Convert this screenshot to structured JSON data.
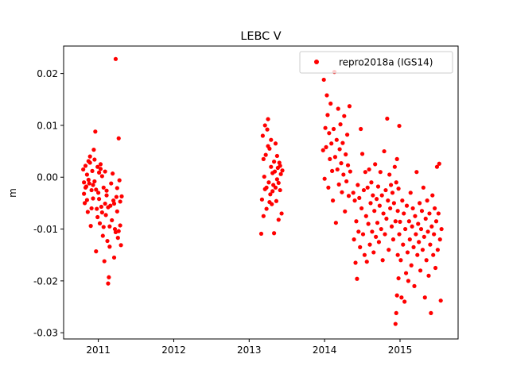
{
  "chart_data": {
    "type": "scatter",
    "title": "LEBC V",
    "xlabel": "",
    "ylabel": "m",
    "xlim": [
      2010.54,
      2015.77
    ],
    "ylim": [
      -0.0312,
      0.0253
    ],
    "x_ticks": [
      {
        "value": 2011,
        "label": "2011"
      },
      {
        "value": 2012,
        "label": "2012"
      },
      {
        "value": 2013,
        "label": "2013"
      },
      {
        "value": 2014,
        "label": "2014"
      },
      {
        "value": 2015,
        "label": "2015"
      }
    ],
    "y_ticks": [
      {
        "value": 0.02,
        "label": "0.02"
      },
      {
        "value": 0.01,
        "label": "0.01"
      },
      {
        "value": 0.0,
        "label": "0.00"
      },
      {
        "value": -0.01,
        "label": "-0.01"
      },
      {
        "value": -0.02,
        "label": "-0.02"
      },
      {
        "value": -0.03,
        "label": "-0.03"
      }
    ],
    "grid": false,
    "legend_position": "top-right",
    "series": [
      {
        "name": "repro2018a (IGS14)",
        "color": "#ff0000",
        "marker": "circle",
        "points": [
          [
            2010.8,
            0.0015
          ],
          [
            2010.81,
            -0.0032
          ],
          [
            2010.82,
            -0.005
          ],
          [
            2010.83,
            0.0022
          ],
          [
            2010.84,
            -0.0018
          ],
          [
            2010.85,
            0.0005
          ],
          [
            2010.86,
            -0.0067
          ],
          [
            2010.87,
            0.0031
          ],
          [
            2010.88,
            -0.0012
          ],
          [
            2010.89,
            0.004
          ],
          [
            2010.9,
            -0.0094
          ],
          [
            2010.91,
            -0.0025
          ],
          [
            2010.92,
            0.0012
          ],
          [
            2010.93,
            -0.0041
          ],
          [
            2010.94,
            0.0053
          ],
          [
            2010.95,
            -0.0008
          ],
          [
            2010.96,
            0.0088
          ],
          [
            2010.97,
            -0.0143
          ],
          [
            2010.98,
            -0.0061
          ],
          [
            2010.99,
            0.002
          ],
          [
            2011.0,
            -0.003
          ],
          [
            2011.01,
            0.0009
          ],
          [
            2011.02,
            -0.0089
          ],
          [
            2011.03,
            0.0016
          ],
          [
            2011.04,
            -0.0057
          ],
          [
            2011.05,
            0.0002
          ],
          [
            2011.06,
            -0.0113
          ],
          [
            2011.07,
            -0.002
          ],
          [
            2011.08,
            -0.0162
          ],
          [
            2011.09,
            0.0011
          ],
          [
            2011.1,
            -0.0073
          ],
          [
            2011.11,
            -0.0035
          ],
          [
            2011.12,
            -0.0123
          ],
          [
            2011.13,
            -0.0205
          ],
          [
            2011.14,
            -0.0193
          ],
          [
            2011.15,
            -0.0134
          ],
          [
            2011.16,
            -0.0055
          ],
          [
            2011.17,
            -0.0012
          ],
          [
            2011.18,
            -0.0083
          ],
          [
            2011.19,
            0.0007
          ],
          [
            2011.2,
            -0.0045
          ],
          [
            2011.21,
            -0.0155
          ],
          [
            2011.22,
            -0.01
          ],
          [
            2011.23,
            0.0228
          ],
          [
            2011.24,
            -0.0038
          ],
          [
            2011.25,
            -0.0066
          ],
          [
            2011.26,
            -0.0117
          ],
          [
            2011.27,
            0.0075
          ],
          [
            2011.28,
            -0.0006
          ],
          [
            2011.29,
            -0.0093
          ],
          [
            2011.3,
            -0.0131
          ],
          [
            2011.31,
            -0.0037
          ],
          [
            2010.81,
            -0.001
          ],
          [
            2010.83,
            -0.002
          ],
          [
            2010.85,
            -0.0044
          ],
          [
            2010.87,
            -0.0005
          ],
          [
            2010.89,
            0.0028
          ],
          [
            2010.91,
            -0.006
          ],
          [
            2010.93,
            -0.0015
          ],
          [
            2010.95,
            0.0034
          ],
          [
            2010.97,
            -0.0024
          ],
          [
            2010.99,
            -0.0077
          ],
          [
            2011.01,
            -0.0042
          ],
          [
            2011.03,
            0.0025
          ],
          [
            2011.05,
            -0.0068
          ],
          [
            2011.07,
            -0.0096
          ],
          [
            2011.09,
            -0.0051
          ],
          [
            2011.11,
            -0.0026
          ],
          [
            2011.13,
            -0.0058
          ],
          [
            2011.15,
            -0.0095
          ],
          [
            2011.21,
            -0.0051
          ],
          [
            2011.23,
            -0.0106
          ],
          [
            2011.25,
            -0.0021
          ],
          [
            2011.27,
            -0.0104
          ],
          [
            2011.29,
            -0.0047
          ],
          [
            2013.16,
            -0.0109
          ],
          [
            2013.17,
            -0.0043
          ],
          [
            2013.18,
            0.008
          ],
          [
            2013.19,
            -0.0075
          ],
          [
            2013.2,
            0.0001
          ],
          [
            2013.21,
            -0.0023
          ],
          [
            2013.22,
            0.0043
          ],
          [
            2013.23,
            -0.0061
          ],
          [
            2013.24,
            0.0092
          ],
          [
            2013.25,
            0.0112
          ],
          [
            2013.26,
            -0.001
          ],
          [
            2013.27,
            0.0055
          ],
          [
            2013.28,
            -0.0033
          ],
          [
            2013.29,
            0.002
          ],
          [
            2013.3,
            -0.0052
          ],
          [
            2013.31,
            0.0008
          ],
          [
            2013.32,
            -0.0015
          ],
          [
            2013.33,
            -0.0108
          ],
          [
            2013.34,
            0.0011
          ],
          [
            2013.35,
            0.0065
          ],
          [
            2013.36,
            -0.0046
          ],
          [
            2013.37,
            -0.0004
          ],
          [
            2013.38,
            0.0018
          ],
          [
            2013.39,
            -0.0082
          ],
          [
            2013.4,
            0.0028
          ],
          [
            2013.41,
            -0.0025
          ],
          [
            2013.42,
            0.0006
          ],
          [
            2013.43,
            -0.007
          ],
          [
            2013.44,
            0.0013
          ],
          [
            2013.19,
            0.0035
          ],
          [
            2013.21,
            0.01
          ],
          [
            2013.23,
            -0.002
          ],
          [
            2013.25,
            0.006
          ],
          [
            2013.27,
            -0.0048
          ],
          [
            2013.29,
            0.0072
          ],
          [
            2013.31,
            -0.0027
          ],
          [
            2013.33,
            0.003
          ],
          [
            2013.35,
            -0.002
          ],
          [
            2013.37,
            0.0041
          ],
          [
            2013.39,
            -0.0011
          ],
          [
            2013.41,
            0.0022
          ],
          [
            2013.98,
            0.0052
          ],
          [
            2013.99,
            0.0188
          ],
          [
            2014.0,
            -0.0003
          ],
          [
            2014.01,
            0.0095
          ],
          [
            2014.02,
            0.0058
          ],
          [
            2014.03,
            0.0158
          ],
          [
            2014.04,
            0.012
          ],
          [
            2014.05,
            -0.002
          ],
          [
            2014.06,
            0.0085
          ],
          [
            2014.07,
            0.0035
          ],
          [
            2014.08,
            0.0142
          ],
          [
            2014.09,
            0.0065
          ],
          [
            2014.1,
            0.0012
          ],
          [
            2014.11,
            -0.0045
          ],
          [
            2014.12,
            0.0093
          ],
          [
            2014.13,
            0.0203
          ],
          [
            2014.14,
            0.0039
          ],
          [
            2014.15,
            -0.0088
          ],
          [
            2014.16,
            0.0072
          ],
          [
            2014.17,
            0.0015
          ],
          [
            2014.18,
            0.0132
          ],
          [
            2014.19,
            -0.0014
          ],
          [
            2014.2,
            0.0054
          ],
          [
            2014.21,
            0.0102
          ],
          [
            2014.22,
            0.0027
          ],
          [
            2014.23,
            -0.0029
          ],
          [
            2014.24,
            0.0066
          ],
          [
            2014.25,
            0.0005
          ],
          [
            2014.26,
            0.0118
          ],
          [
            2014.27,
            -0.0066
          ],
          [
            2014.28,
            0.0044
          ],
          [
            2014.29,
            -0.0008
          ],
          [
            2014.3,
            0.0082
          ],
          [
            2014.31,
            0.0023
          ],
          [
            2014.32,
            -0.0036
          ],
          [
            2014.33,
            0.0137
          ],
          [
            2014.34,
            0.0011
          ],
          [
            2014.38,
            -0.003
          ],
          [
            2014.39,
            -0.012
          ],
          [
            2014.4,
            -0.0045
          ],
          [
            2014.41,
            -0.0165
          ],
          [
            2014.42,
            -0.0085
          ],
          [
            2014.43,
            -0.0196
          ],
          [
            2014.44,
            -0.0015
          ],
          [
            2014.45,
            -0.0105
          ],
          [
            2014.46,
            -0.004
          ],
          [
            2014.47,
            -0.0135
          ],
          [
            2014.48,
            0.0093
          ],
          [
            2014.49,
            -0.006
          ],
          [
            2014.5,
            0.0045
          ],
          [
            2014.51,
            -0.011
          ],
          [
            2014.52,
            -0.0025
          ],
          [
            2014.53,
            -0.015
          ],
          [
            2014.54,
            0.001
          ],
          [
            2014.55,
            -0.0075
          ],
          [
            2014.56,
            -0.0163
          ],
          [
            2014.57,
            -0.002
          ],
          [
            2014.58,
            -0.009
          ],
          [
            2014.59,
            0.0015
          ],
          [
            2014.6,
            -0.013
          ],
          [
            2014.61,
            -0.005
          ],
          [
            2014.62,
            -0.001
          ],
          [
            2014.63,
            -0.0105
          ],
          [
            2014.64,
            -0.0035
          ],
          [
            2014.65,
            -0.0145
          ],
          [
            2014.66,
            -0.0065
          ],
          [
            2014.67,
            0.0025
          ],
          [
            2014.68,
            -0.0115
          ],
          [
            2014.69,
            -0.0042
          ],
          [
            2014.7,
            -0.0088
          ],
          [
            2014.71,
            -0.0018
          ],
          [
            2014.72,
            -0.0125
          ],
          [
            2014.73,
            -0.0055
          ],
          [
            2014.74,
            0.001
          ],
          [
            2014.75,
            -0.01
          ],
          [
            2014.76,
            -0.0035
          ],
          [
            2014.77,
            -0.016
          ],
          [
            2014.78,
            -0.007
          ],
          [
            2014.79,
            0.005
          ],
          [
            2014.8,
            -0.011
          ],
          [
            2014.81,
            -0.0025
          ],
          [
            2014.82,
            -0.008
          ],
          [
            2014.83,
            0.0113
          ],
          [
            2014.84,
            -0.0045
          ],
          [
            2014.85,
            -0.014
          ],
          [
            2014.86,
            0.0005
          ],
          [
            2014.87,
            -0.006
          ],
          [
            2014.88,
            -0.0015
          ],
          [
            2014.89,
            -0.0095
          ],
          [
            2014.9,
            -0.003
          ],
          [
            2014.91,
            -0.012
          ],
          [
            2014.92,
            -0.005
          ],
          [
            2014.93,
            0.002
          ],
          [
            2014.94,
            -0.0085
          ],
          [
            2014.95,
            -0.001
          ],
          [
            2014.96,
            0.0035
          ],
          [
            2014.97,
            -0.0065
          ],
          [
            2014.98,
            -0.0022
          ],
          [
            2014.99,
            0.0099
          ],
          [
            2014.94,
            -0.0283
          ],
          [
            2014.95,
            -0.0262
          ],
          [
            2014.96,
            -0.0228
          ],
          [
            2014.97,
            -0.015
          ],
          [
            2014.98,
            -0.0195
          ],
          [
            2014.99,
            -0.011
          ],
          [
            2015.0,
            -0.0086
          ],
          [
            2015.01,
            -0.016
          ],
          [
            2015.02,
            -0.0232
          ],
          [
            2015.03,
            -0.0045
          ],
          [
            2015.04,
            -0.013
          ],
          [
            2015.05,
            -0.007
          ],
          [
            2015.06,
            -0.024
          ],
          [
            2015.07,
            -0.01
          ],
          [
            2015.08,
            -0.0185
          ],
          [
            2015.09,
            -0.0055
          ],
          [
            2015.1,
            -0.0145
          ],
          [
            2015.11,
            -0.02
          ],
          [
            2015.12,
            -0.0085
          ],
          [
            2015.13,
            -0.012
          ],
          [
            2015.14,
            -0.003
          ],
          [
            2015.15,
            -0.017
          ],
          [
            2015.16,
            -0.0095
          ],
          [
            2015.17,
            -0.006
          ],
          [
            2015.18,
            -0.0135
          ],
          [
            2015.19,
            -0.021
          ],
          [
            2015.2,
            -0.0075
          ],
          [
            2015.21,
            -0.011
          ],
          [
            2015.22,
            0.001
          ],
          [
            2015.23,
            -0.015
          ],
          [
            2015.24,
            -0.009
          ],
          [
            2015.25,
            -0.0125
          ],
          [
            2015.26,
            -0.005
          ],
          [
            2015.27,
            -0.018
          ],
          [
            2015.28,
            -0.01
          ],
          [
            2015.29,
            -0.0065
          ],
          [
            2015.3,
            -0.014
          ],
          [
            2015.31,
            -0.002
          ],
          [
            2015.32,
            -0.0115
          ],
          [
            2015.33,
            -0.0232
          ],
          [
            2015.34,
            -0.008
          ],
          [
            2015.35,
            -0.016
          ],
          [
            2015.36,
            -0.0045
          ],
          [
            2015.37,
            -0.0105
          ],
          [
            2015.38,
            -0.019
          ],
          [
            2015.39,
            -0.007
          ],
          [
            2015.4,
            -0.013
          ],
          [
            2015.41,
            -0.0262
          ],
          [
            2015.42,
            -0.0095
          ],
          [
            2015.43,
            -0.0035
          ],
          [
            2015.44,
            -0.015
          ],
          [
            2015.45,
            -0.011
          ],
          [
            2015.46,
            -0.006
          ],
          [
            2015.47,
            -0.0175
          ],
          [
            2015.48,
            -0.0085
          ],
          [
            2015.49,
            0.002
          ],
          [
            2015.5,
            -0.014
          ],
          [
            2015.51,
            -0.007
          ],
          [
            2015.52,
            0.0026
          ],
          [
            2015.53,
            -0.012
          ],
          [
            2015.54,
            -0.0238
          ],
          [
            2015.55,
            -0.01
          ]
        ]
      }
    ]
  }
}
